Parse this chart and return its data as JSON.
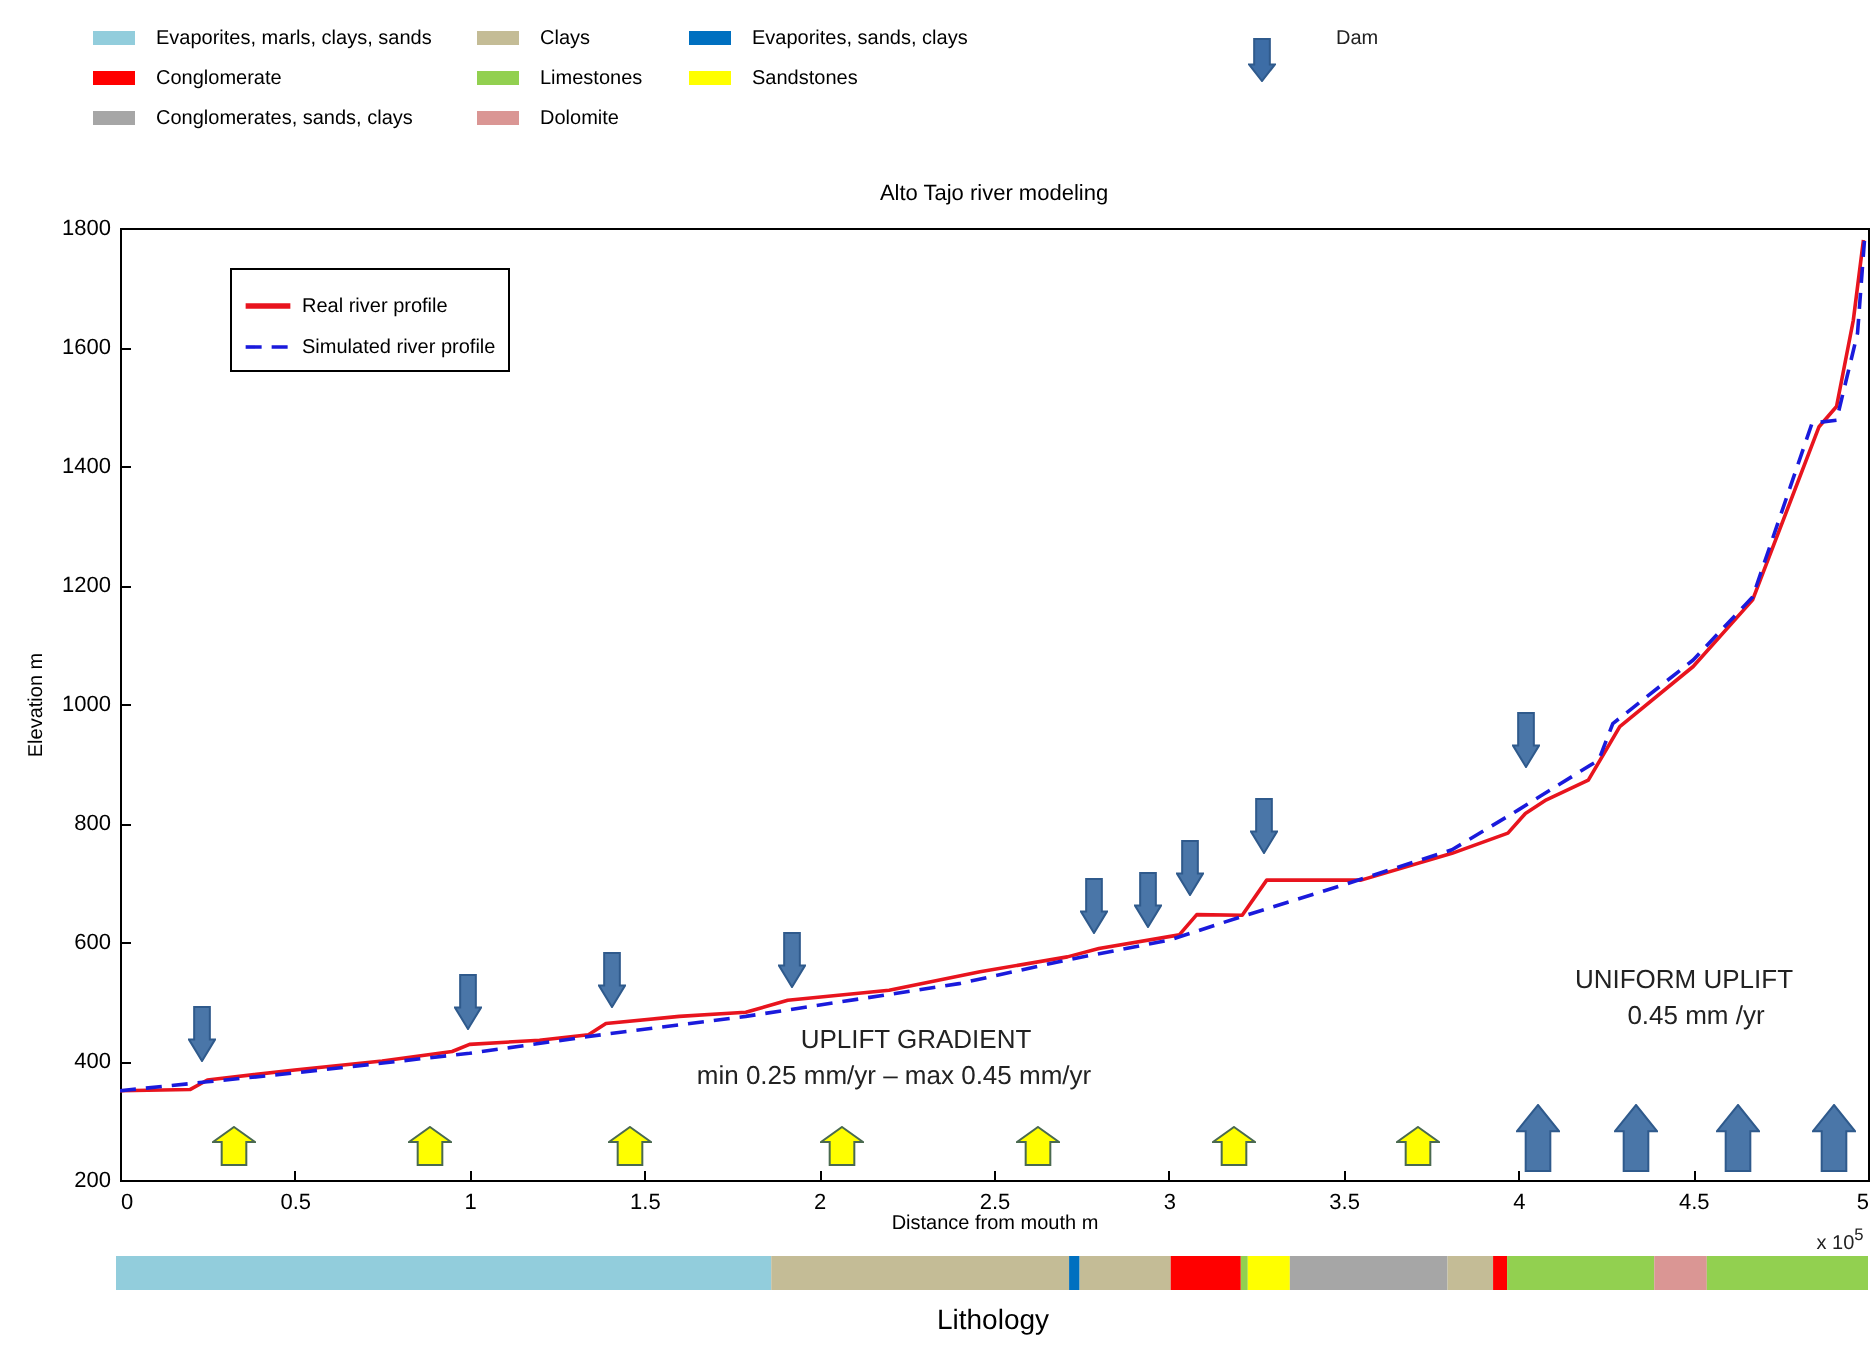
{
  "chart_data": [
    {
      "type": "line",
      "title": "Alto Tajo river modeling",
      "xlabel": "Distance from mouth m",
      "ylabel": "Elevation m",
      "xlim": [
        0,
        5
      ],
      "ylim": [
        200,
        1800
      ],
      "xticks": [
        0,
        0.5,
        1,
        1.5,
        2,
        2.5,
        3,
        3.5,
        4,
        4.5,
        5
      ],
      "yticks": [
        200,
        400,
        600,
        800,
        1000,
        1200,
        1400,
        1600,
        1800
      ],
      "legend": "top left",
      "annotations": [
        "Dam",
        "UPLIFT GRADIENT",
        "min 0.25 mm/yr – max 0.45 mm/yr",
        "UNIFORM UPLIFT",
        "0.45 mm /yr",
        "x 10$^{5}$"
      ],
      "series": [
        {
          "name": "Real river profile",
          "color": "#e8141e",
          "line_style": "solid",
          "x": [
            0,
            0.2,
            0.25,
            0.5,
            0.75,
            0.95,
            1.0,
            1.2,
            1.34,
            1.39,
            1.6,
            1.79,
            1.91,
            2.2,
            2.46,
            2.71,
            2.8,
            3.03,
            3.08,
            3.21,
            3.28,
            3.55,
            3.81,
            3.97,
            4.02,
            4.08,
            4.2,
            4.29,
            4.5,
            4.67,
            4.86,
            4.91,
            4.958,
            4.987
          ],
          "values": [
            350,
            352,
            368,
            385,
            400,
            416,
            428,
            435,
            444,
            463,
            475,
            482,
            502,
            519,
            550,
            575,
            589,
            612,
            646,
            645,
            704,
            704,
            749,
            783,
            816,
            839,
            872,
            962,
            1063,
            1175,
            1466,
            1500,
            1645,
            1780
          ]
        },
        {
          "name": "Simulated river profile",
          "color": "#1a1adc",
          "line_style": "dashed",
          "x": [
            0,
            0.25,
            0.5,
            1.0,
            1.4,
            1.79,
            2.4,
            2.71,
            3.0,
            3.21,
            3.51,
            3.81,
            4.0,
            4.06,
            4.23,
            4.27,
            4.5,
            4.67,
            4.84,
            4.91,
            4.97,
            4.99
          ],
          "values": [
            350,
            365,
            380,
            413,
            446,
            475,
            530,
            570,
            603,
            643,
            698,
            755,
            822,
            844,
            906,
            967,
            1074,
            1180,
            1472,
            1477,
            1623,
            1780
          ]
        }
      ]
    },
    {
      "type": "bar",
      "orientation": "horizontal",
      "stacked": true,
      "xlabel": "Lithology",
      "xlim": [
        0,
        5
      ],
      "tick_labels": false,
      "legend": "top",
      "categories": [
        null
      ],
      "series": [
        {
          "name": "Evaporites, marls, clays, sands",
          "color": "#92cddc",
          "values": [
            1.87
          ]
        },
        {
          "name": "Clays",
          "color": "#c4bc96",
          "values": [
            0.85
          ]
        },
        {
          "name": "Evaporites, sands, clays",
          "color": "#0070c0",
          "values": [
            0.03
          ]
        },
        {
          "color": "#c4bc96",
          "values": [
            0.26
          ]
        },
        {
          "name": "Conglomerate",
          "color": "#ff0000",
          "values": [
            0.2
          ]
        },
        {
          "name": "Limestones",
          "color": "#92d050",
          "values": [
            0.02
          ]
        },
        {
          "name": "Sandstones",
          "color": "#ffff00",
          "values": [
            0.12
          ]
        },
        {
          "name": "Conglomerates, sands, clays",
          "color": "#a6a6a6",
          "values": [
            0.45
          ]
        },
        {
          "color": "#c4bc96",
          "values": [
            0.13
          ]
        },
        {
          "color": "#ff0000",
          "values": [
            0.04
          ]
        },
        {
          "color": "#92d050",
          "values": [
            0.42
          ]
        },
        {
          "name": "Dolomite",
          "color": "#da9694",
          "values": [
            0.15
          ]
        },
        {
          "color": "#92d050",
          "values": [
            0.46
          ]
        }
      ]
    }
  ]
}
